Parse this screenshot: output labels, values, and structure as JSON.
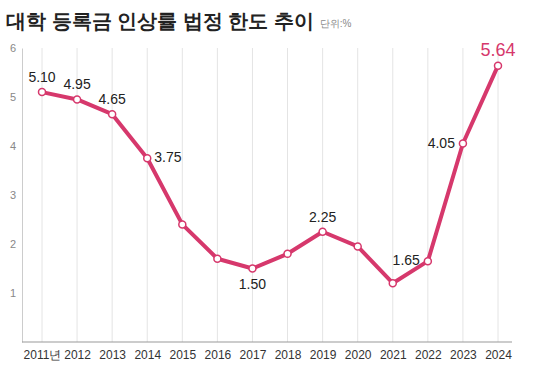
{
  "chart_data": {
    "type": "line",
    "title": "대학 등록금 인상률 법정 한도 추이",
    "subtitle": "단위:%",
    "categories": [
      "2011년",
      "2012",
      "2013",
      "2014",
      "2015",
      "2016",
      "2017",
      "2018",
      "2019",
      "2020",
      "2021",
      "2022",
      "2023",
      "2024"
    ],
    "values": [
      5.1,
      4.95,
      4.65,
      3.75,
      2.4,
      1.7,
      1.5,
      1.8,
      2.25,
      1.95,
      1.2,
      1.65,
      4.05,
      5.64
    ],
    "value_labels": [
      "5.10",
      "4.95",
      "4.65",
      "3.75",
      null,
      null,
      "1.50",
      null,
      "2.25",
      null,
      null,
      "1.65",
      "4.05",
      "5.64"
    ],
    "data_labels": true,
    "color": "#d6386c",
    "marker": "circle",
    "grid": true,
    "ylim": [
      0,
      6
    ],
    "yticks": [
      1,
      2,
      3,
      4,
      5,
      6
    ]
  }
}
